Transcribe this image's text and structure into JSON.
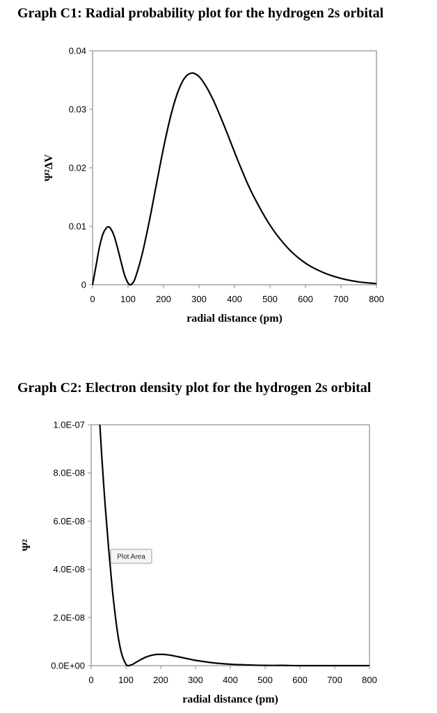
{
  "chart_data": [
    {
      "type": "line",
      "title": "Graph C1: Radial probability plot for the hydrogen 2s orbital",
      "xlabel": "radial distance (pm)",
      "ylabel": "Ψ²ΔV",
      "xlim": [
        0,
        800
      ],
      "ylim": [
        0,
        0.04
      ],
      "x_ticks": [
        "0",
        "100",
        "200",
        "300",
        "400",
        "500",
        "600",
        "700",
        "800"
      ],
      "y_ticks": [
        "0",
        "0.01",
        "0.02",
        "0.03",
        "0.04"
      ],
      "grid": false,
      "series": [
        {
          "x": [
            0,
            10,
            20,
            30,
            40,
            45,
            50,
            60,
            70,
            80,
            90,
            100,
            106,
            110,
            120,
            140,
            160,
            180,
            200,
            220,
            240,
            260,
            280,
            300,
            320,
            340,
            360,
            380,
            400,
            420,
            450,
            500,
            550,
            600,
            650,
            700,
            750,
            800
          ],
          "y": [
            0,
            0.0033,
            0.0066,
            0.0088,
            0.0098,
            0.0099,
            0.0097,
            0.0085,
            0.0064,
            0.004,
            0.0017,
            0.0003,
            0,
            0.0001,
            0.0011,
            0.0053,
            0.0109,
            0.0172,
            0.0234,
            0.0288,
            0.0329,
            0.0354,
            0.0362,
            0.0356,
            0.0339,
            0.0316,
            0.0288,
            0.0258,
            0.0227,
            0.0197,
            0.0156,
            0.0102,
            0.0063,
            0.0037,
            0.0021,
            0.0011,
            0.0005,
            0.0002
          ]
        }
      ]
    },
    {
      "type": "line",
      "title": "Graph C2: Electron density plot for the hydrogen 2s orbital",
      "xlabel": "radial distance (pm)",
      "ylabel": "Ψ²",
      "xlim": [
        0,
        800
      ],
      "ylim": [
        0,
        1e-07
      ],
      "x_ticks": [
        "0",
        "100",
        "200",
        "300",
        "400",
        "500",
        "600",
        "700",
        "800"
      ],
      "y_ticks": [
        "0.0E+00",
        "2.0E-08",
        "4.0E-08",
        "6.0E-08",
        "8.0E-08",
        "1.0E-07"
      ],
      "grid": false,
      "annotation": "Plot Area",
      "series": [
        {
          "x": [
            25,
            30,
            40,
            50,
            60,
            70,
            80,
            90,
            100,
            106,
            110,
            120,
            140,
            160,
            180,
            200,
            220,
            240,
            260,
            280,
            300,
            350,
            400,
            450,
            500,
            550,
            600,
            700,
            800
          ],
          "y": [
            1e-07,
            8.8e-08,
            6.7e-08,
            4.9e-08,
            3.3e-08,
            2e-08,
            1e-08,
            3.8e-09,
            6e-10,
            0,
            1e-10,
            6e-10,
            2.3e-09,
            3.7e-09,
            4.5e-09,
            4.7e-09,
            4.5e-09,
            4e-09,
            3.4e-09,
            2.8e-09,
            2.2e-09,
            1.2e-09,
            6e-10,
            3e-10,
            1e-10,
            1e-10,
            0,
            0,
            0
          ]
        }
      ]
    }
  ]
}
